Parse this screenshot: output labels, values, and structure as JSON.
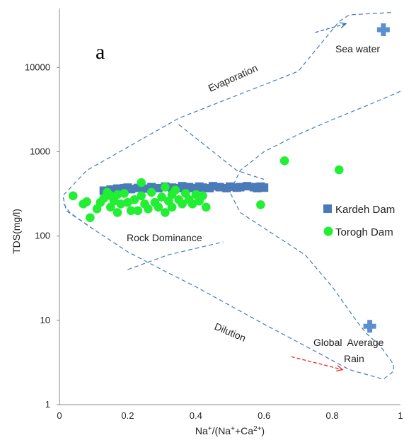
{
  "chart_data": {
    "type": "scatter",
    "panel_label": "a",
    "xlabel": "Na+/(Na++Ca2+)",
    "xlabel_parts": [
      {
        "t": "Na",
        "sup": false
      },
      {
        "t": "+",
        "sup": true
      },
      {
        "t": "/(Na",
        "sup": false
      },
      {
        "t": "+",
        "sup": true
      },
      {
        "t": "+Ca",
        "sup": false
      },
      {
        "t": "2+",
        "sup": true
      },
      {
        "t": ")",
        "sup": false
      }
    ],
    "ylabel": "TDS(mg/l)",
    "x_range": [
      0,
      1
    ],
    "y_range": [
      1,
      50000
    ],
    "y_scale": "log",
    "x_ticks": [
      "0",
      "0.2",
      "0.4",
      "0.6",
      "0.8",
      "1"
    ],
    "y_ticks": [
      "1",
      "10",
      "100",
      "1000",
      "10000"
    ],
    "grid": false,
    "legend_position": "right",
    "series": [
      {
        "name": "Kardeh Dam",
        "marker": "square",
        "color": "#4a7ab8",
        "points": [
          [
            0.13,
            345
          ],
          [
            0.15,
            355
          ],
          [
            0.17,
            365
          ],
          [
            0.19,
            370
          ],
          [
            0.2,
            375
          ],
          [
            0.21,
            360
          ],
          [
            0.23,
            372
          ],
          [
            0.25,
            365
          ],
          [
            0.27,
            380
          ],
          [
            0.29,
            370
          ],
          [
            0.31,
            385
          ],
          [
            0.33,
            375
          ],
          [
            0.35,
            370
          ],
          [
            0.36,
            390
          ],
          [
            0.38,
            380
          ],
          [
            0.39,
            370
          ],
          [
            0.41,
            385
          ],
          [
            0.42,
            375
          ],
          [
            0.44,
            370
          ],
          [
            0.45,
            390
          ],
          [
            0.47,
            380
          ],
          [
            0.49,
            370
          ],
          [
            0.5,
            385
          ],
          [
            0.52,
            375
          ],
          [
            0.53,
            380
          ],
          [
            0.55,
            390
          ],
          [
            0.57,
            380
          ],
          [
            0.58,
            370
          ],
          [
            0.59,
            385
          ],
          [
            0.6,
            375
          ]
        ]
      },
      {
        "name": "Torogh Dam",
        "marker": "circle",
        "color": "#22ee33",
        "points": [
          [
            0.04,
            300
          ],
          [
            0.07,
            240
          ],
          [
            0.08,
            255
          ],
          [
            0.09,
            165
          ],
          [
            0.11,
            210
          ],
          [
            0.12,
            250
          ],
          [
            0.13,
            280
          ],
          [
            0.14,
            330
          ],
          [
            0.15,
            220
          ],
          [
            0.15,
            300
          ],
          [
            0.16,
            260
          ],
          [
            0.17,
            190
          ],
          [
            0.17,
            310
          ],
          [
            0.18,
            240
          ],
          [
            0.19,
            320
          ],
          [
            0.2,
            250
          ],
          [
            0.21,
            200
          ],
          [
            0.22,
            270
          ],
          [
            0.23,
            200
          ],
          [
            0.24,
            430
          ],
          [
            0.24,
            300
          ],
          [
            0.25,
            240
          ],
          [
            0.26,
            210
          ],
          [
            0.27,
            330
          ],
          [
            0.28,
            250
          ],
          [
            0.29,
            220
          ],
          [
            0.3,
            290
          ],
          [
            0.31,
            380
          ],
          [
            0.31,
            190
          ],
          [
            0.32,
            260
          ],
          [
            0.33,
            310
          ],
          [
            0.33,
            220
          ],
          [
            0.34,
            350
          ],
          [
            0.35,
            270
          ],
          [
            0.36,
            240
          ],
          [
            0.37,
            320
          ],
          [
            0.38,
            270
          ],
          [
            0.39,
            240
          ],
          [
            0.4,
            310
          ],
          [
            0.41,
            260
          ],
          [
            0.42,
            300
          ],
          [
            0.43,
            220
          ],
          [
            0.59,
            235
          ],
          [
            0.66,
            780
          ],
          [
            0.82,
            610
          ]
        ]
      }
    ],
    "reference_points": [
      {
        "label": "Sea water",
        "x": 0.95,
        "y": 28000
      },
      {
        "label": "Global Average Rain",
        "label_lines": [
          "Global  Average",
          "Rain"
        ],
        "x": 0.91,
        "y": 8.5
      }
    ],
    "region_labels": [
      "Rock Dominance"
    ],
    "trend_labels": [
      "Evaporation",
      "Dilution"
    ],
    "boundaries": [
      {
        "name": "outer-envelope",
        "points": [
          [
            0.1,
            120
          ],
          [
            0.02,
            200
          ],
          [
            0.01,
            300
          ],
          [
            0.08,
            600
          ],
          [
            0.35,
            2500
          ],
          [
            0.7,
            9000
          ],
          [
            0.82,
            35000
          ],
          [
            0.85,
            42000
          ],
          [
            0.98,
            45000
          ],
          [
            0.98,
            45000
          ]
        ]
      },
      {
        "name": "upper-right-boundary",
        "points": [
          [
            1.0,
            5200
          ],
          [
            0.9,
            3500
          ],
          [
            0.8,
            2400
          ],
          [
            0.7,
            1600
          ],
          [
            0.6,
            1000
          ],
          [
            0.53,
            600
          ],
          [
            0.5,
            330
          ],
          [
            0.53,
            190
          ],
          [
            0.62,
            110
          ],
          [
            0.72,
            60
          ],
          [
            0.8,
            25
          ],
          [
            0.87,
            10
          ],
          [
            0.9,
            7
          ],
          [
            0.94,
            5
          ],
          [
            0.98,
            3
          ],
          [
            0.98,
            2.5
          ],
          [
            0.95,
            2
          ],
          [
            0.85,
            2.6
          ],
          [
            0.75,
            4.3
          ],
          [
            0.6,
            9
          ],
          [
            0.5,
            15
          ],
          [
            0.4,
            25
          ],
          [
            0.3,
            40
          ],
          [
            0.2,
            65
          ],
          [
            0.1,
            120
          ],
          [
            0.03,
            190
          ],
          [
            0.01,
            250
          ]
        ]
      },
      {
        "name": "rock-upper",
        "points": [
          [
            0.35,
            2100
          ],
          [
            0.52,
            600
          ],
          [
            0.6,
            470
          ]
        ]
      },
      {
        "name": "rock-lower",
        "points": [
          [
            0.2,
            40
          ],
          [
            0.32,
            60
          ],
          [
            0.48,
            85
          ]
        ]
      }
    ],
    "arrows": [
      {
        "name": "evaporation-arrow",
        "color": "#2a6fb8",
        "from": [
          0.75,
          26000
        ],
        "to": [
          0.84,
          33000
        ]
      },
      {
        "name": "dilution-arrow",
        "color": "#e22",
        "from": [
          0.68,
          3.7
        ],
        "to": [
          0.83,
          2.6
        ]
      }
    ]
  }
}
